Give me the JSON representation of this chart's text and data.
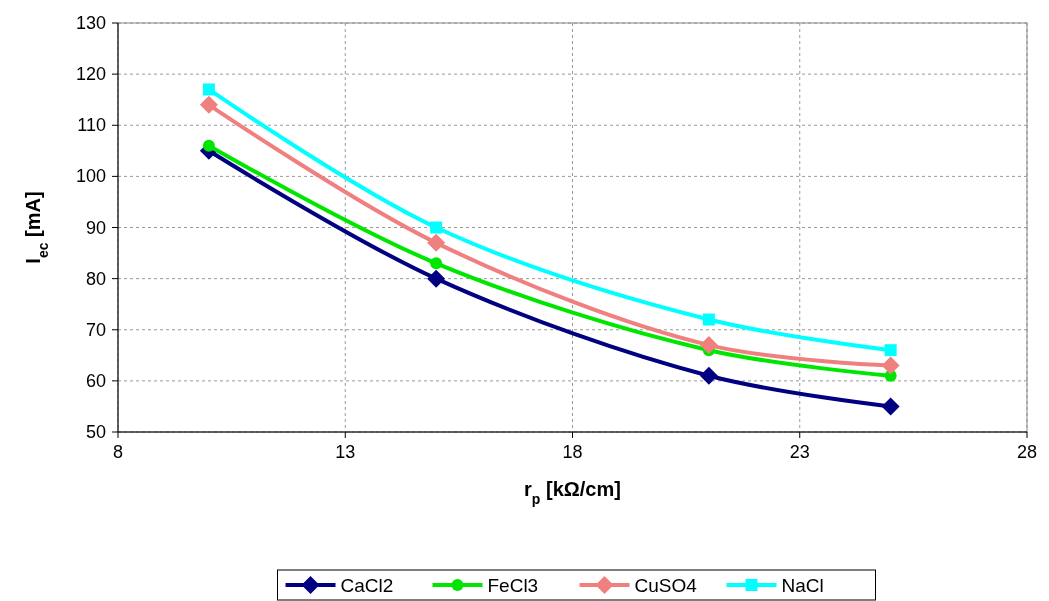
{
  "chart_data": {
    "type": "line",
    "xlabel": "r$_{p}$  [kΩ/cm]",
    "ylabel": "I$_{ec}$  [mA]",
    "x": [
      10,
      15,
      21,
      25
    ],
    "series": [
      {
        "name": "CaCl2",
        "color": "#000080",
        "marker": "diamond",
        "values": [
          105,
          80,
          61,
          55
        ]
      },
      {
        "name": "FeCl3",
        "color": "#00e600",
        "marker": "circle",
        "values": [
          106,
          83,
          66,
          61
        ]
      },
      {
        "name": "CuSO4",
        "color": "#f08080",
        "marker": "diamond",
        "values": [
          114,
          87,
          67,
          63
        ]
      },
      {
        "name": "NaCl",
        "color": "#00ffff",
        "marker": "square",
        "values": [
          117,
          90,
          72,
          66
        ]
      }
    ],
    "xlim": [
      8,
      28
    ],
    "xticks": [
      8,
      13,
      18,
      23,
      28
    ],
    "ylim": [
      50,
      130
    ],
    "yticks": [
      50,
      60,
      70,
      80,
      90,
      100,
      110,
      120,
      130
    ],
    "grid": true,
    "legend": "bottom",
    "line_style": "solid"
  }
}
